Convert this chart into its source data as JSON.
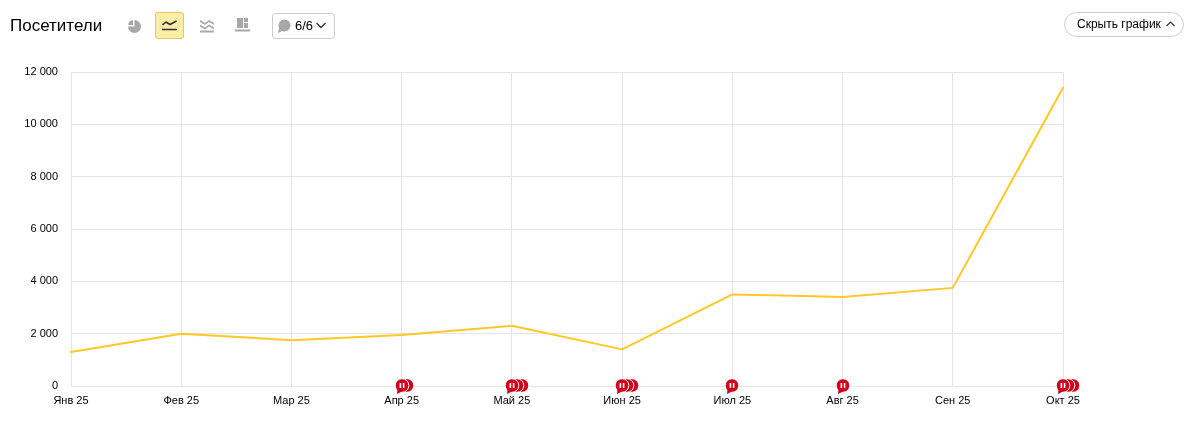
{
  "chart_data": {
    "type": "line",
    "title": "Посетители",
    "annotations": [
      "6/6",
      "Скрыть график"
    ],
    "categories": [
      "Янв 25",
      "Фев 25",
      "Мар 25",
      "Апр 25",
      "Май 25",
      "Июн 25",
      "Июл 25",
      "Авг 25",
      "Сен 25",
      "Окт 25"
    ],
    "series": [
      {
        "color": "#ffc826",
        "values": [
          1300,
          2000,
          1750,
          1950,
          2300,
          1400,
          3500,
          3400,
          3750,
          11400
        ]
      }
    ],
    "ylim": [
      0,
      12000
    ],
    "yticks": [
      0,
      {
        "value": 2000,
        "label": "2 000"
      },
      {
        "value": 4000,
        "label": "4 000"
      },
      {
        "value": 6000,
        "label": "6 000"
      },
      {
        "value": 8000,
        "label": "8 000"
      },
      {
        "value": 10000,
        "label": "10 000"
      },
      {
        "value": 12000,
        "label": "12 000"
      }
    ],
    "grid": true,
    "marker": "none",
    "line_style": "solid"
  }
}
